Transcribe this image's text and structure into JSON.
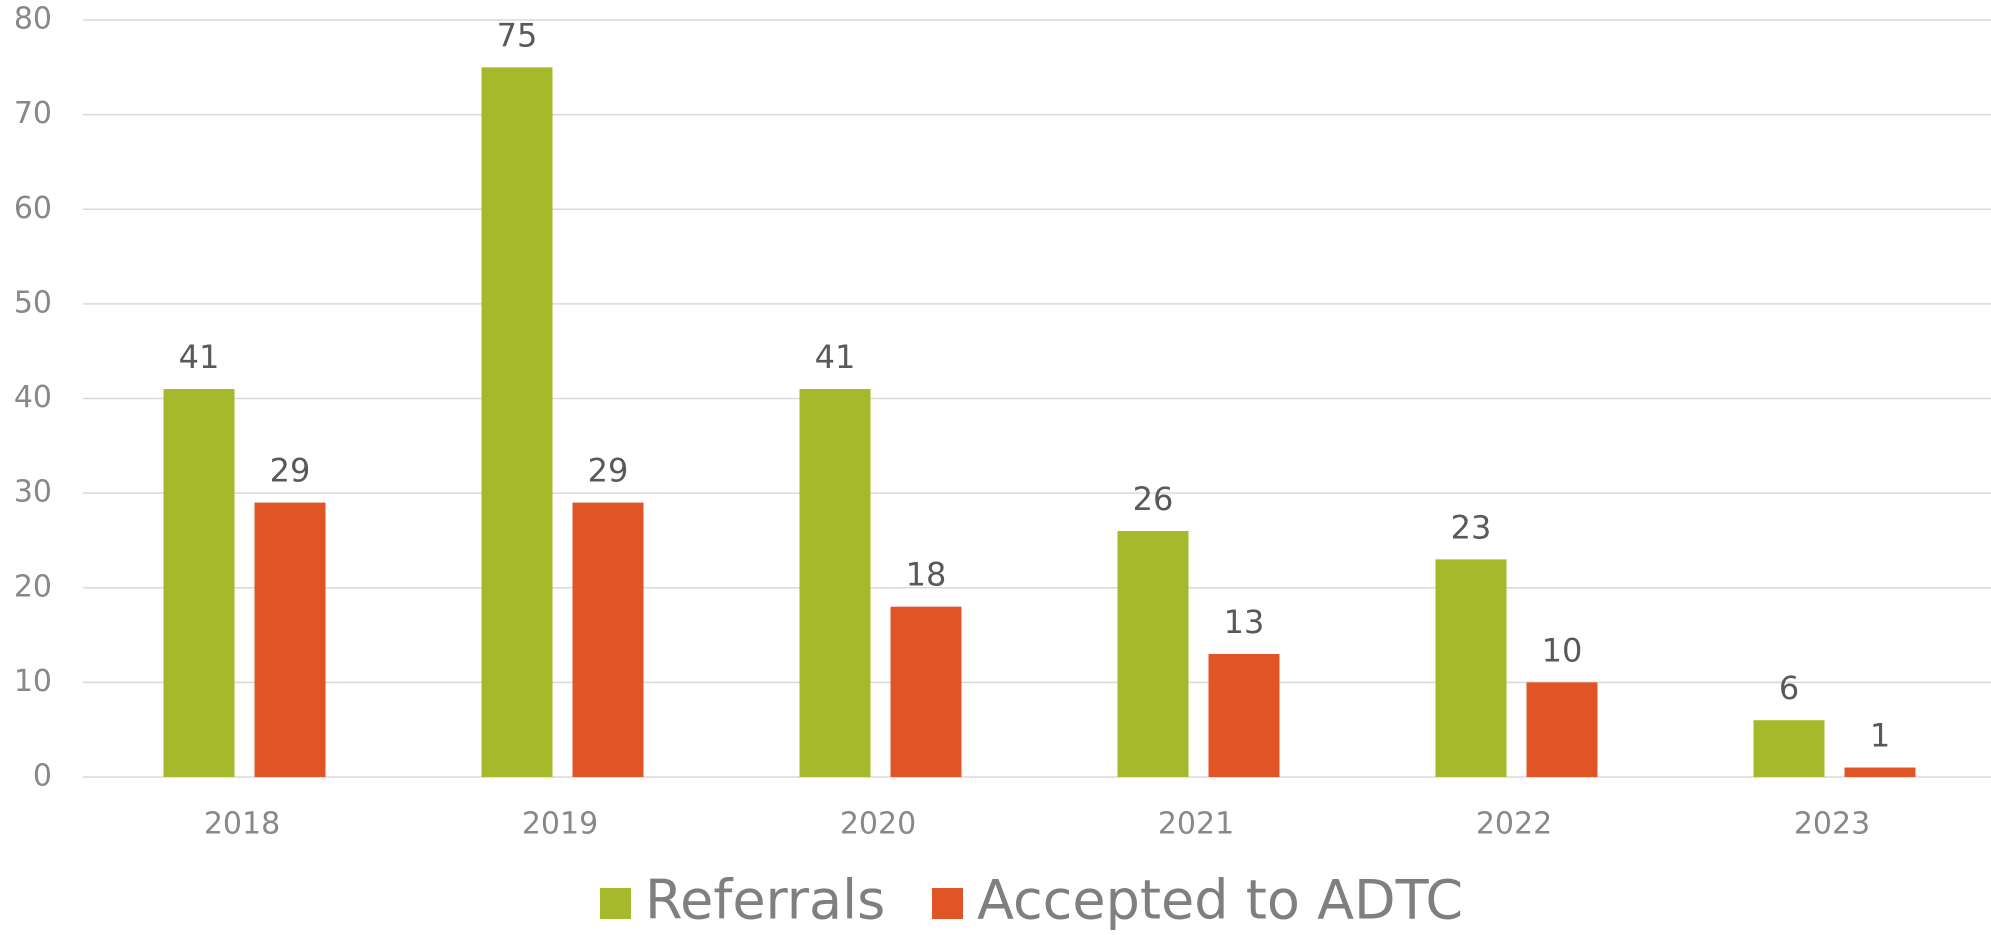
{
  "chart_data": {
    "type": "bar",
    "categories": [
      "2018",
      "2019",
      "2020",
      "2021",
      "2022",
      "2023"
    ],
    "series": [
      {
        "name": "Referrals",
        "color": "#a6b92a",
        "values": [
          41,
          75,
          41,
          26,
          23,
          6
        ]
      },
      {
        "name": "Accepted to ADTC",
        "color": "#e05426",
        "values": [
          29,
          29,
          18,
          13,
          10,
          1
        ]
      }
    ],
    "ylim": [
      0,
      80
    ],
    "yticks": [
      0,
      10,
      20,
      30,
      40,
      50,
      60,
      70,
      80
    ],
    "grid": true,
    "legend": "bottom"
  }
}
